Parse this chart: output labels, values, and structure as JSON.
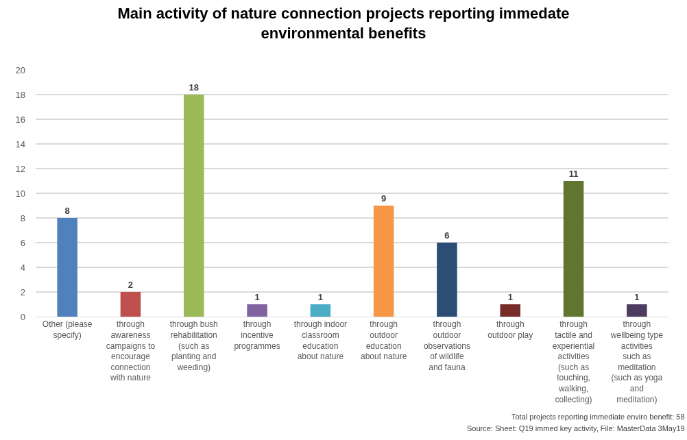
{
  "chart_data": {
    "type": "bar",
    "title": "Main activity of nature connection projects reporting immedate environmental benefits",
    "categories": [
      "Other (please specify)",
      "through awareness campaigns to encourage connection with nature",
      "through bush rehabilitation (such as planting and weeding)",
      "through incentive programmes",
      "through indoor classroom education about nature",
      "through outdoor education about nature",
      "through outdoor observations of wildlife and fauna",
      "through outdoor play",
      "through tactile and experiential activities (such as touching, walking, collecting)",
      "through wellbeing type activities such as meditation (such as yoga and meditation)"
    ],
    "values": [
      8,
      2,
      18,
      1,
      1,
      9,
      6,
      1,
      11,
      1
    ],
    "colors": [
      "#4f81bd",
      "#c0504d",
      "#9bbb59",
      "#8064a2",
      "#4bacc6",
      "#f79646",
      "#2c4d75",
      "#772c2a",
      "#5f7530",
      "#4d3b62"
    ],
    "ylim": [
      0,
      20
    ],
    "yticks": [
      0,
      2,
      4,
      6,
      8,
      10,
      12,
      14,
      16,
      18,
      20
    ],
    "grid": "y",
    "data_labels": true,
    "annotations": [
      "Total projects reporting immediate enviro benefit: 58",
      "Source: Sheet: Q19 immed key activity, File: MasterData 3May19"
    ]
  }
}
